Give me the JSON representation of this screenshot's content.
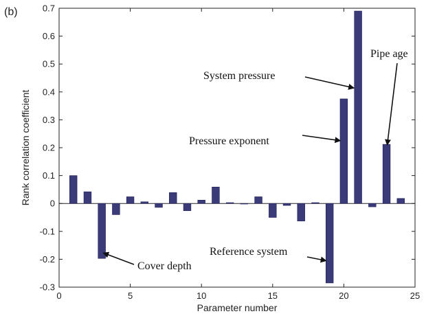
{
  "panel_label": "(b)",
  "chart_data": {
    "type": "bar",
    "xlabel": "Parameter number",
    "ylabel": "Rank correlation coefficient",
    "xlim": [
      0,
      25
    ],
    "ylim": [
      -0.3,
      0.7
    ],
    "xticks": [
      0,
      5,
      10,
      15,
      20,
      25
    ],
    "xtick_labels": [
      "0",
      "5",
      "10",
      "15",
      "20",
      "25"
    ],
    "yticks": [
      -0.3,
      -0.2,
      -0.1,
      0,
      0.1,
      0.2,
      0.3,
      0.4,
      0.5,
      0.6,
      0.7
    ],
    "ytick_labels": [
      "-0.3",
      "-0.2",
      "-0.1",
      "0",
      "0.1",
      "0.2",
      "0.3",
      "0.4",
      "0.5",
      "0.6",
      "0.7"
    ],
    "grid": false,
    "bar_color": "#3b3b7a",
    "x": [
      1,
      2,
      3,
      4,
      5,
      6,
      7,
      8,
      9,
      10,
      11,
      12,
      13,
      14,
      15,
      16,
      17,
      18,
      19,
      20,
      21,
      22,
      23,
      24
    ],
    "values": [
      0.1,
      0.042,
      -0.197,
      -0.04,
      0.024,
      0.006,
      -0.014,
      0.039,
      -0.026,
      0.012,
      0.059,
      0.003,
      0.0,
      0.024,
      -0.05,
      -0.007,
      -0.063,
      0.003,
      -0.285,
      0.375,
      0.69,
      -0.012,
      0.212,
      0.018
    ],
    "annotations": [
      {
        "text": "Cover depth",
        "bar": 3
      },
      {
        "text": "Reference system",
        "bar": 19
      },
      {
        "text": "Pressure exponent",
        "bar": 20
      },
      {
        "text": "System pressure",
        "bar": 21
      },
      {
        "text": "Pipe age",
        "bar": 23
      }
    ]
  }
}
